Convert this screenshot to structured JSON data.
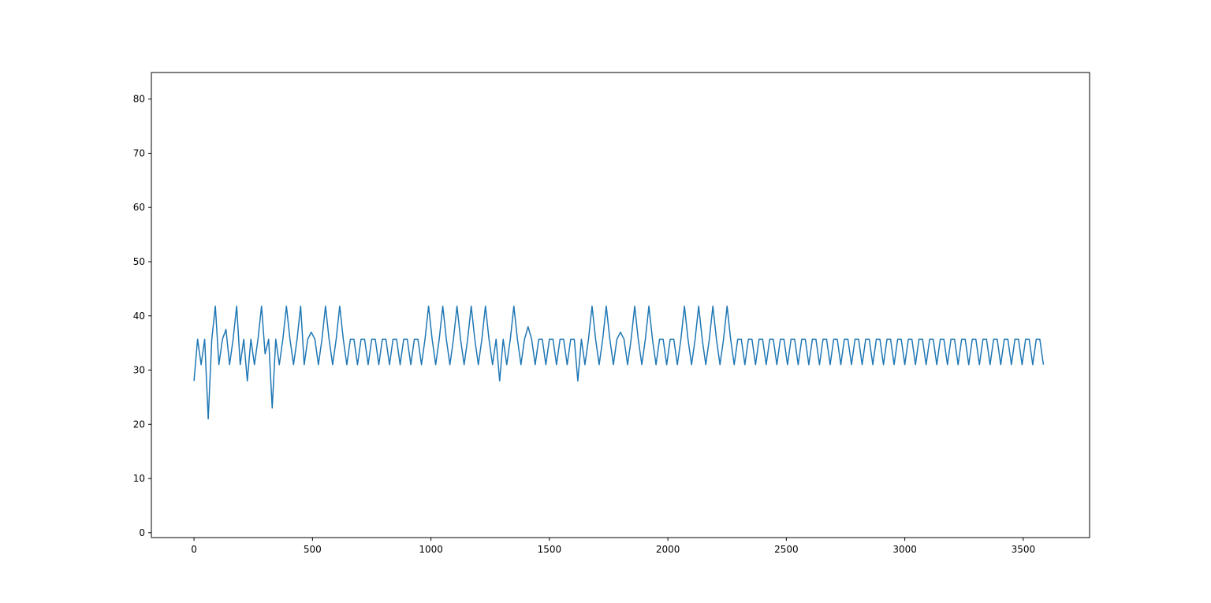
{
  "chart_data": {
    "type": "line",
    "title": "",
    "xlabel": "",
    "ylabel": "",
    "xlim": [
      -180,
      3780
    ],
    "ylim": [
      -0.9,
      84.9
    ],
    "x_ticks": [
      0,
      500,
      1000,
      1500,
      2000,
      2500,
      3000,
      3500
    ],
    "x_tick_labels": [
      "0",
      "500",
      "1000",
      "1500",
      "2000",
      "2500",
      "3000",
      "3500"
    ],
    "y_ticks": [
      0,
      10,
      20,
      30,
      40,
      50,
      60,
      70,
      80
    ],
    "y_tick_labels": [
      "0",
      "10",
      "20",
      "30",
      "40",
      "50",
      "60",
      "70",
      "80"
    ],
    "grid": false,
    "line_color": "#1f77b4",
    "series": [
      {
        "x_start": 0,
        "x_step": 15,
        "values": [
          28,
          35.7,
          31,
          35.7,
          21,
          35.7,
          41.8,
          31,
          35.7,
          37.5,
          31,
          35.7,
          41.8,
          31,
          35.7,
          28,
          35.7,
          31,
          35.7,
          41.8,
          33,
          35.7,
          23,
          35.7,
          31,
          35.7,
          41.8,
          35.7,
          31,
          35.7,
          41.8,
          31,
          35.7,
          37,
          35.7,
          31,
          35.7,
          41.8,
          35.7,
          31,
          35.7,
          41.8,
          35.7,
          31,
          35.7,
          35.7,
          31,
          35.7,
          35.7,
          31,
          35.7,
          35.7,
          31,
          35.7,
          35.7,
          31,
          35.7,
          35.7,
          31,
          35.7,
          35.7,
          31,
          35.7,
          35.7,
          31,
          35.7,
          41.8,
          35.7,
          31,
          35.7,
          41.8,
          35.7,
          31,
          35.7,
          41.8,
          35.7,
          31,
          35.7,
          41.8,
          35.7,
          31,
          35.7,
          41.8,
          35.7,
          31,
          35.7,
          28,
          35.7,
          31,
          35.7,
          41.8,
          35.7,
          31,
          35.7,
          38,
          35.7,
          31,
          35.7,
          35.7,
          31,
          35.7,
          35.7,
          31,
          35.7,
          35.7,
          31,
          35.7,
          35.7,
          28,
          35.7,
          31,
          35.7,
          41.8,
          35.7,
          31,
          35.7,
          41.8,
          35.7,
          31,
          35.7,
          37,
          35.7,
          31,
          35.7,
          41.8,
          35.7,
          31,
          35.7,
          41.8,
          35.7,
          31,
          35.7,
          35.7,
          31,
          35.7,
          35.7,
          31,
          35.7,
          41.8,
          35.7,
          31,
          35.7,
          41.8,
          35.7,
          31,
          35.7,
          41.8,
          35.7,
          31,
          35.7,
          41.8,
          35.7,
          31,
          35.7,
          35.7,
          31,
          35.7,
          35.7,
          31,
          35.7,
          35.7,
          31,
          35.7,
          35.7,
          31,
          35.7,
          35.7,
          31,
          35.7,
          35.7,
          31,
          35.7,
          35.7,
          31,
          35.7,
          35.7,
          31,
          35.7,
          35.7,
          31,
          35.7,
          35.7,
          31,
          35.7,
          35.7,
          31,
          35.7,
          35.7,
          31,
          35.7,
          35.7,
          31,
          35.7,
          35.7,
          31,
          35.7,
          35.7,
          31,
          35.7,
          35.7,
          31,
          35.7,
          35.7,
          31,
          35.7,
          35.7,
          31,
          35.7,
          35.7,
          31,
          35.7,
          35.7,
          31,
          35.7,
          35.7,
          31,
          35.7,
          35.7,
          31,
          35.7,
          35.7,
          31,
          35.7,
          35.7,
          31,
          35.7,
          35.7,
          31,
          35.7,
          35.7,
          31,
          35.7,
          35.7,
          31,
          35.7,
          35.7,
          31,
          35.7,
          35.7,
          31
        ]
      }
    ]
  }
}
